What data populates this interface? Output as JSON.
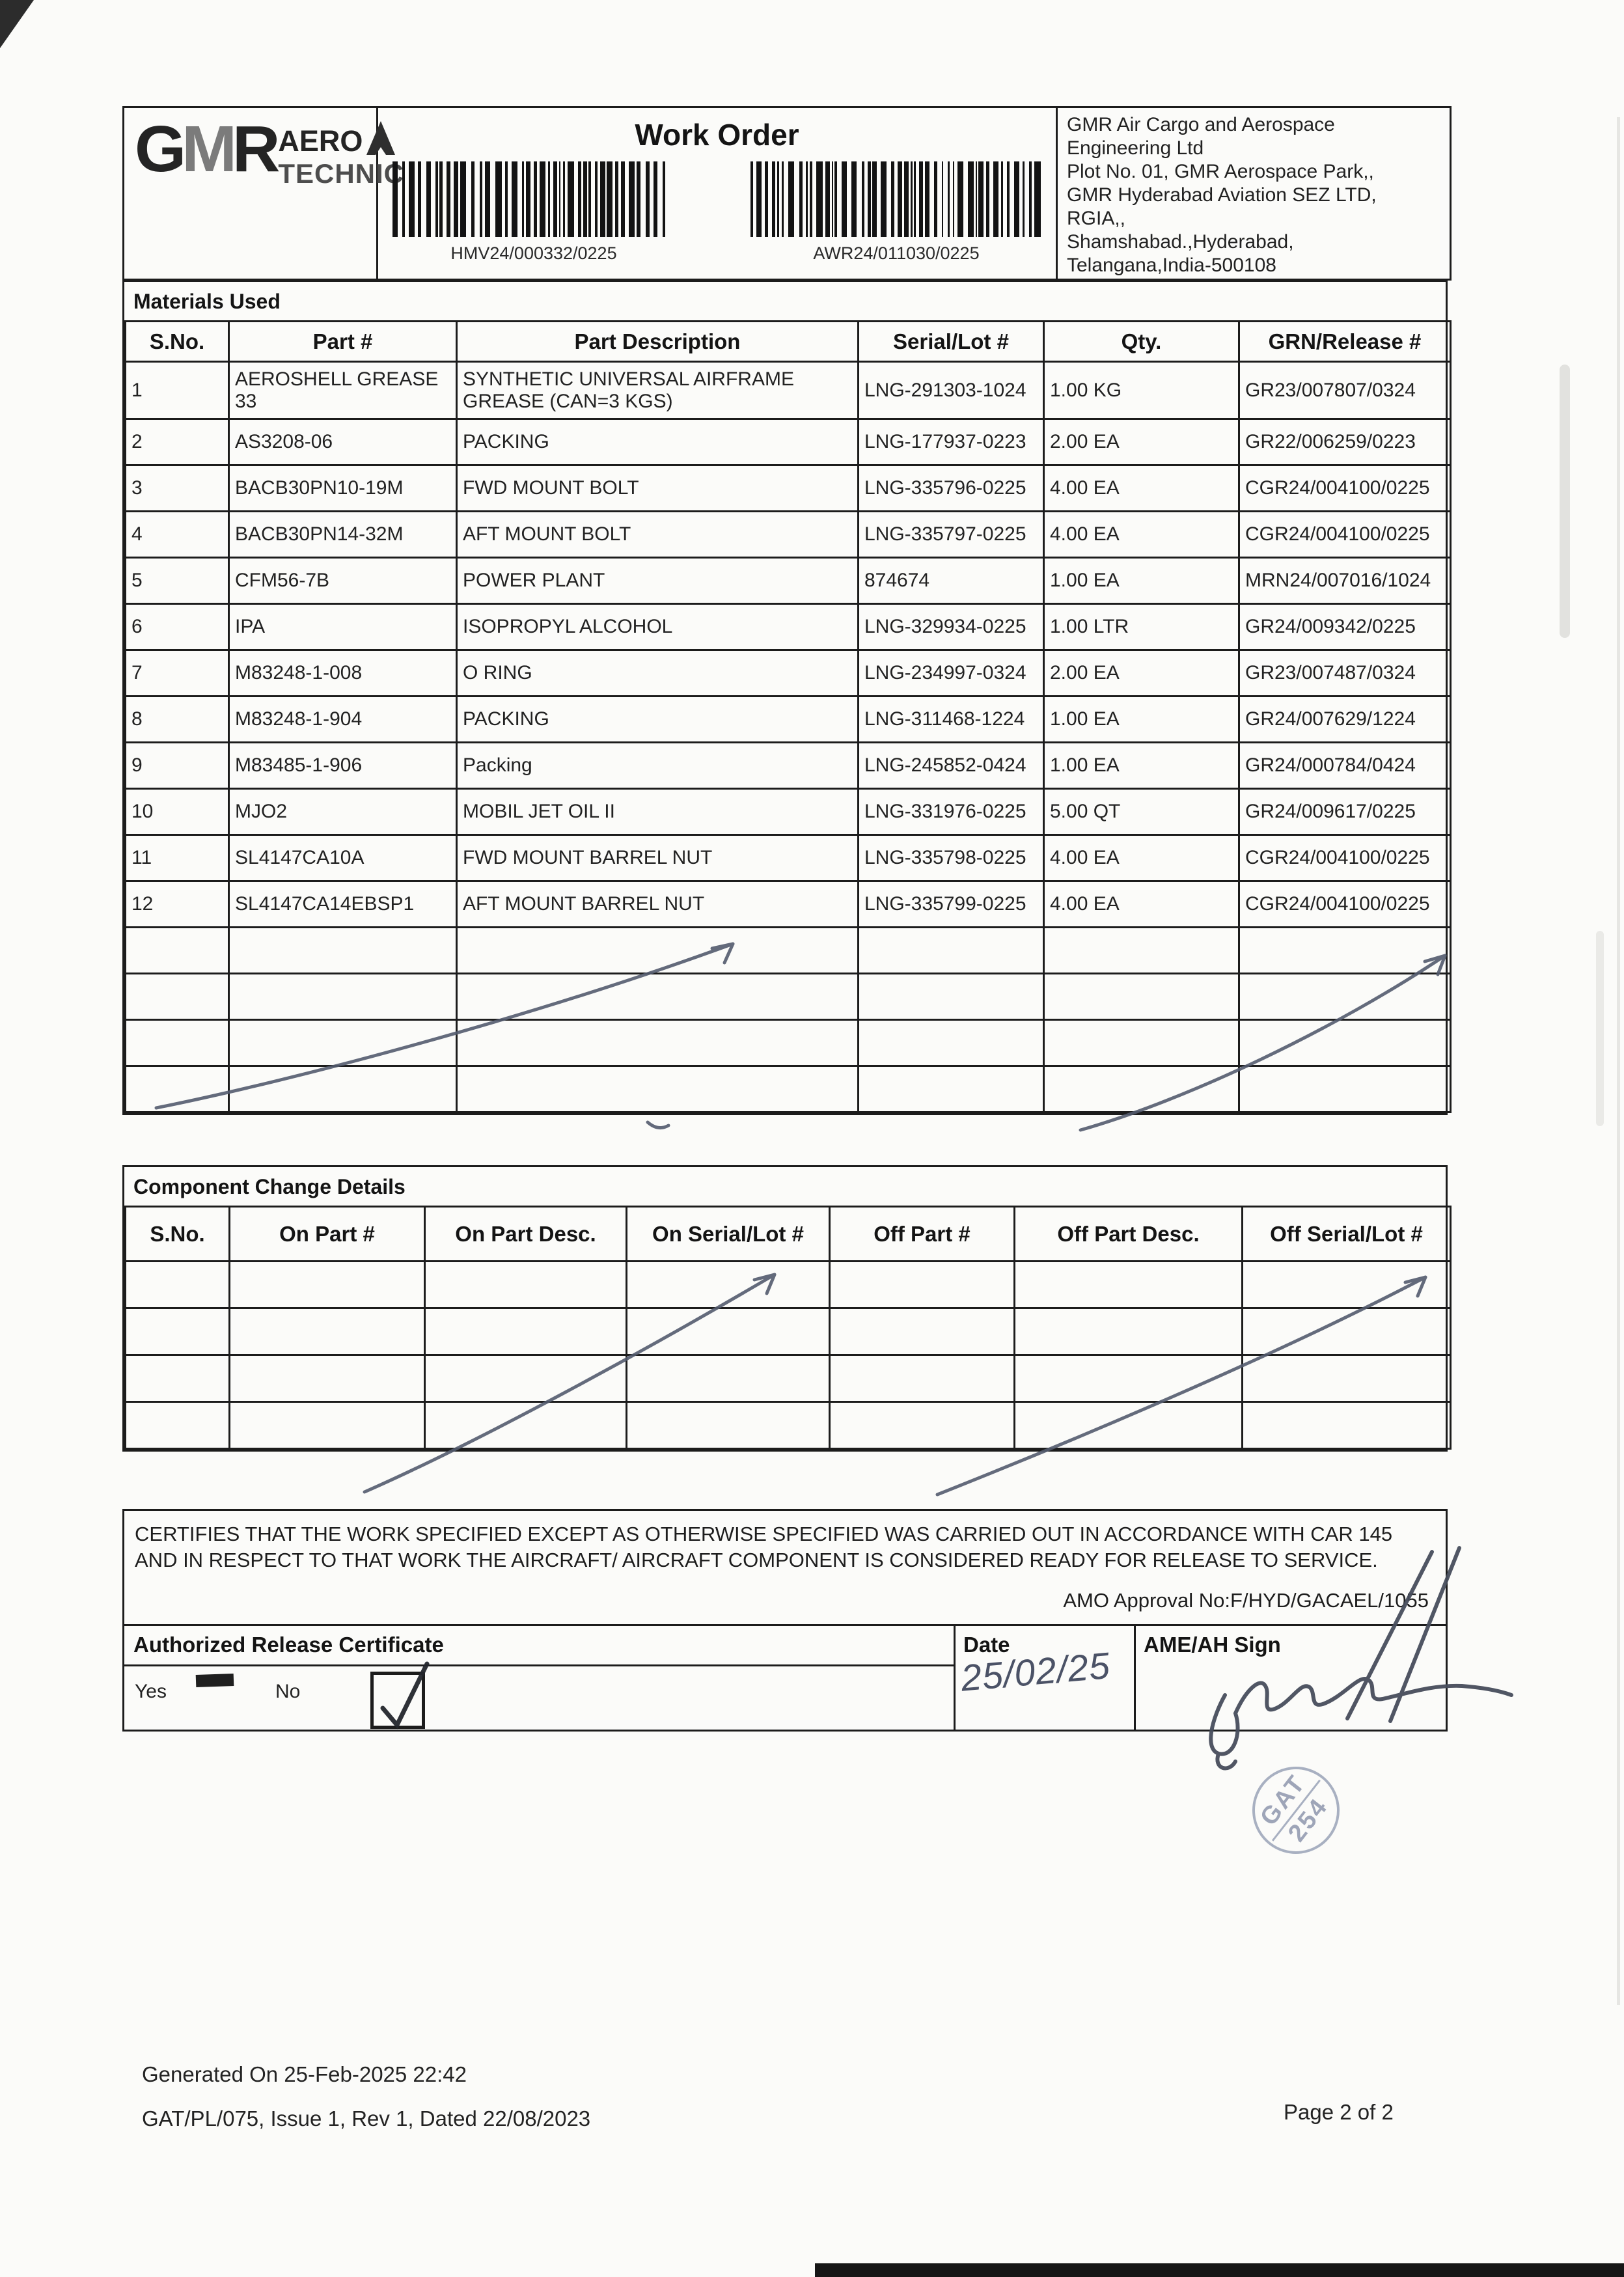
{
  "header": {
    "title": "Work Order",
    "logo": {
      "g": "G",
      "m": "M",
      "r": "R",
      "aero": "AERO",
      "technic": "TECHNIC"
    },
    "barcodes": [
      {
        "value": "HMV24/000332/0225"
      },
      {
        "value": "AWR24/011030/0225"
      }
    ],
    "company": {
      "lines": [
        "GMR Air Cargo and Aerospace",
        "Engineering Ltd",
        "Plot No. 01, GMR Aerospace Park,,",
        "GMR Hyderabad Aviation SEZ LTD,",
        "RGIA,,",
        "Shamshabad.,Hyderabad,",
        "Telangana,India-500108"
      ]
    }
  },
  "materials": {
    "section_title": "Materials Used",
    "columns": [
      "S.No.",
      "Part #",
      "Part Description",
      "Serial/Lot #",
      "Qty.",
      "GRN/Release #"
    ],
    "rows": [
      {
        "sno": "1",
        "part": "AEROSHELL GREASE 33",
        "desc": "SYNTHETIC UNIVERSAL AIRFRAME GREASE (CAN=3 KGS)",
        "serial": "LNG-291303-1024",
        "qty": "1.00 KG",
        "grn": "GR23/007807/0324"
      },
      {
        "sno": "2",
        "part": "AS3208-06",
        "desc": "PACKING",
        "serial": "LNG-177937-0223",
        "qty": "2.00 EA",
        "grn": "GR22/006259/0223"
      },
      {
        "sno": "3",
        "part": "BACB30PN10-19M",
        "desc": "FWD MOUNT BOLT",
        "serial": "LNG-335796-0225",
        "qty": "4.00 EA",
        "grn": "CGR24/004100/0225"
      },
      {
        "sno": "4",
        "part": "BACB30PN14-32M",
        "desc": "AFT MOUNT BOLT",
        "serial": "LNG-335797-0225",
        "qty": "4.00 EA",
        "grn": "CGR24/004100/0225"
      },
      {
        "sno": "5",
        "part": "CFM56-7B",
        "desc": "POWER PLANT",
        "serial": "874674",
        "qty": "1.00 EA",
        "grn": "MRN24/007016/1024"
      },
      {
        "sno": "6",
        "part": "IPA",
        "desc": "ISOPROPYL ALCOHOL",
        "serial": "LNG-329934-0225",
        "qty": "1.00 LTR",
        "grn": "GR24/009342/0225"
      },
      {
        "sno": "7",
        "part": "M83248-1-008",
        "desc": "O RING",
        "serial": "LNG-234997-0324",
        "qty": "2.00 EA",
        "grn": "GR23/007487/0324"
      },
      {
        "sno": "8",
        "part": "M83248-1-904",
        "desc": "PACKING",
        "serial": "LNG-311468-1224",
        "qty": "1.00 EA",
        "grn": "GR24/007629/1224"
      },
      {
        "sno": "9",
        "part": "M83485-1-906",
        "desc": "Packing",
        "serial": "LNG-245852-0424",
        "qty": "1.00 EA",
        "grn": "GR24/000784/0424"
      },
      {
        "sno": "10",
        "part": "MJO2",
        "desc": "MOBIL JET OIL II",
        "serial": "LNG-331976-0225",
        "qty": "5.00 QT",
        "grn": "GR24/009617/0225"
      },
      {
        "sno": "11",
        "part": "SL4147CA10A",
        "desc": "FWD MOUNT BARREL NUT",
        "serial": "LNG-335798-0225",
        "qty": "4.00 EA",
        "grn": "CGR24/004100/0225"
      },
      {
        "sno": "12",
        "part": "SL4147CA14EBSP1",
        "desc": "AFT MOUNT BARREL NUT",
        "serial": "LNG-335799-0225",
        "qty": "4.00 EA",
        "grn": "CGR24/004100/0225"
      }
    ],
    "empty_row_count": 4
  },
  "component_change": {
    "section_title": "Component Change Details",
    "columns": [
      "S.No.",
      "On Part #",
      "On Part Desc.",
      "On Serial/Lot #",
      "Off Part #",
      "Off Part Desc.",
      "Off Serial/Lot #"
    ],
    "empty_row_count": 4
  },
  "certification": {
    "text": "CERTIFIES THAT THE WORK SPECIFIED EXCEPT AS OTHERWISE SPECIFIED WAS CARRIED OUT IN ACCORDANCE WITH CAR 145 AND IN RESPECT TO THAT WORK THE AIRCRAFT/ AIRCRAFT COMPONENT IS CONSIDERED READY FOR RELEASE TO SERVICE.",
    "amo_approval": "AMO Approval No:F/HYD/GACAEL/1055"
  },
  "release_certificate": {
    "title": "Authorized Release Certificate",
    "yes_label": "Yes",
    "no_label": "No",
    "no_checked": true,
    "date_label": "Date",
    "date_value": "25/02/25",
    "sign_label": "AME/AH Sign"
  },
  "stamp": {
    "line1": "GAT",
    "line2": "254"
  },
  "footer": {
    "generated": "Generated On 25-Feb-2025 22:42",
    "doc_ref": "GAT/PL/075, Issue 1, Rev 1, Dated 22/08/2023",
    "page": "Page 2 of 2"
  },
  "colors": {
    "pen_ink": "#535b6e",
    "signature_ink": "#474d5c",
    "stamp_ink": "#9aa3b8",
    "border": "#1c1c1c"
  }
}
